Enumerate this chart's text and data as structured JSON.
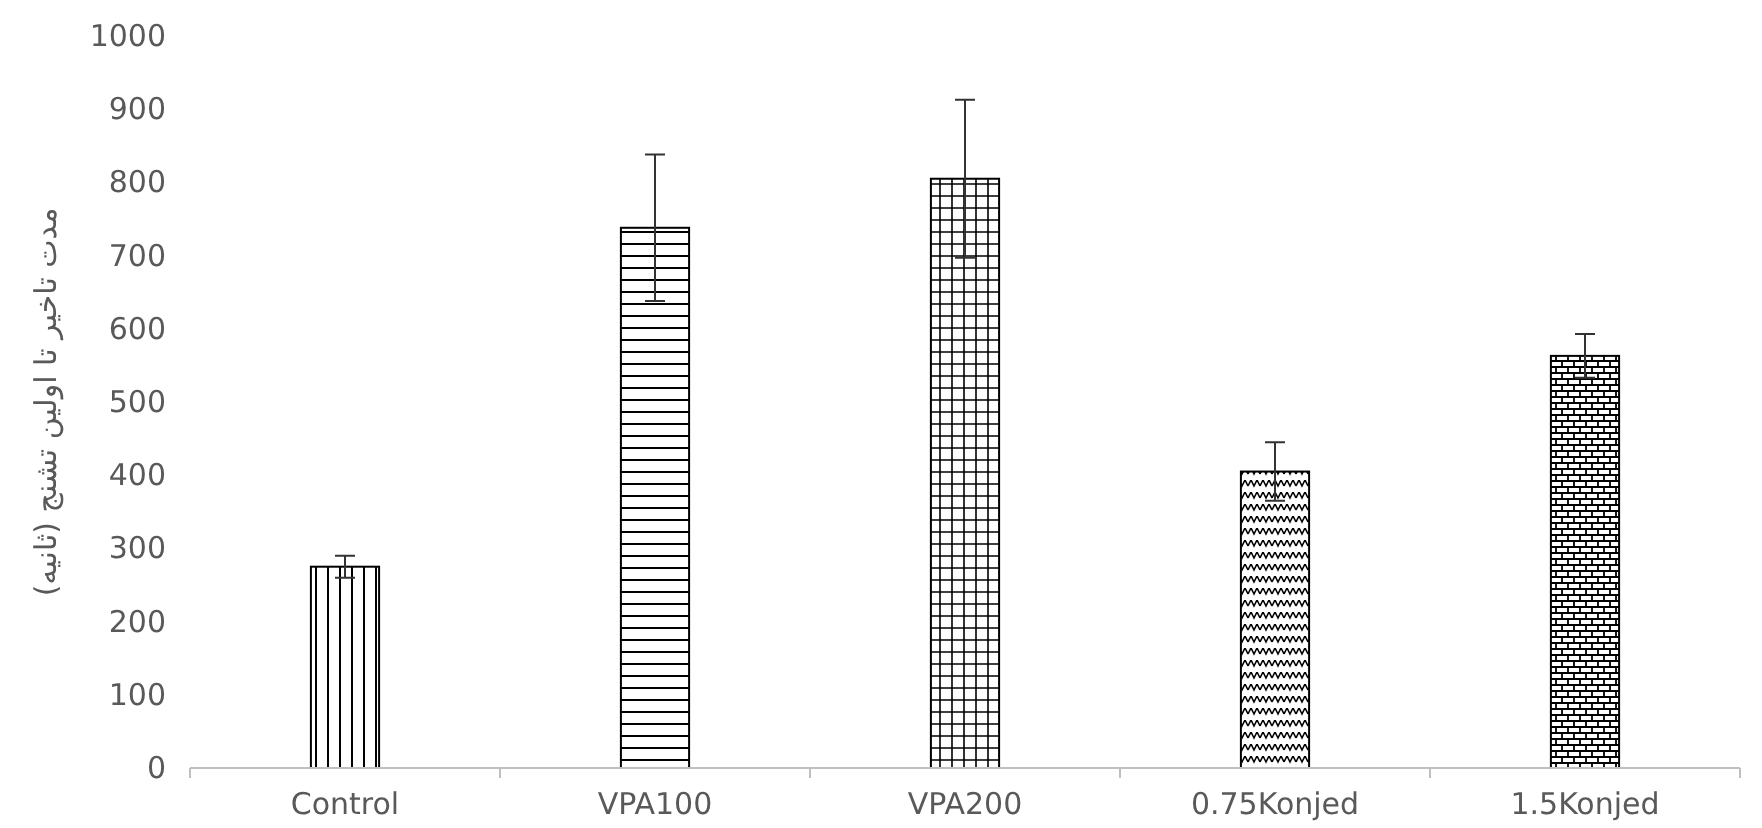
{
  "chart_data": {
    "type": "bar",
    "ylabel": "مدت تاخیر تا اولین تشنج (ثانیه)",
    "categories": [
      "Control",
      "VPA100",
      "VPA200",
      "0.75Konjed",
      "1.5Konjed"
    ],
    "values": [
      275,
      738,
      805,
      405,
      563
    ],
    "errors": [
      15,
      100,
      108,
      40,
      30
    ],
    "color": "#000000",
    "ylim": [
      0,
      1000
    ],
    "yticks": [
      0,
      100,
      200,
      300,
      400,
      500,
      600,
      700,
      800,
      900,
      1000
    ],
    "grid": false
  }
}
